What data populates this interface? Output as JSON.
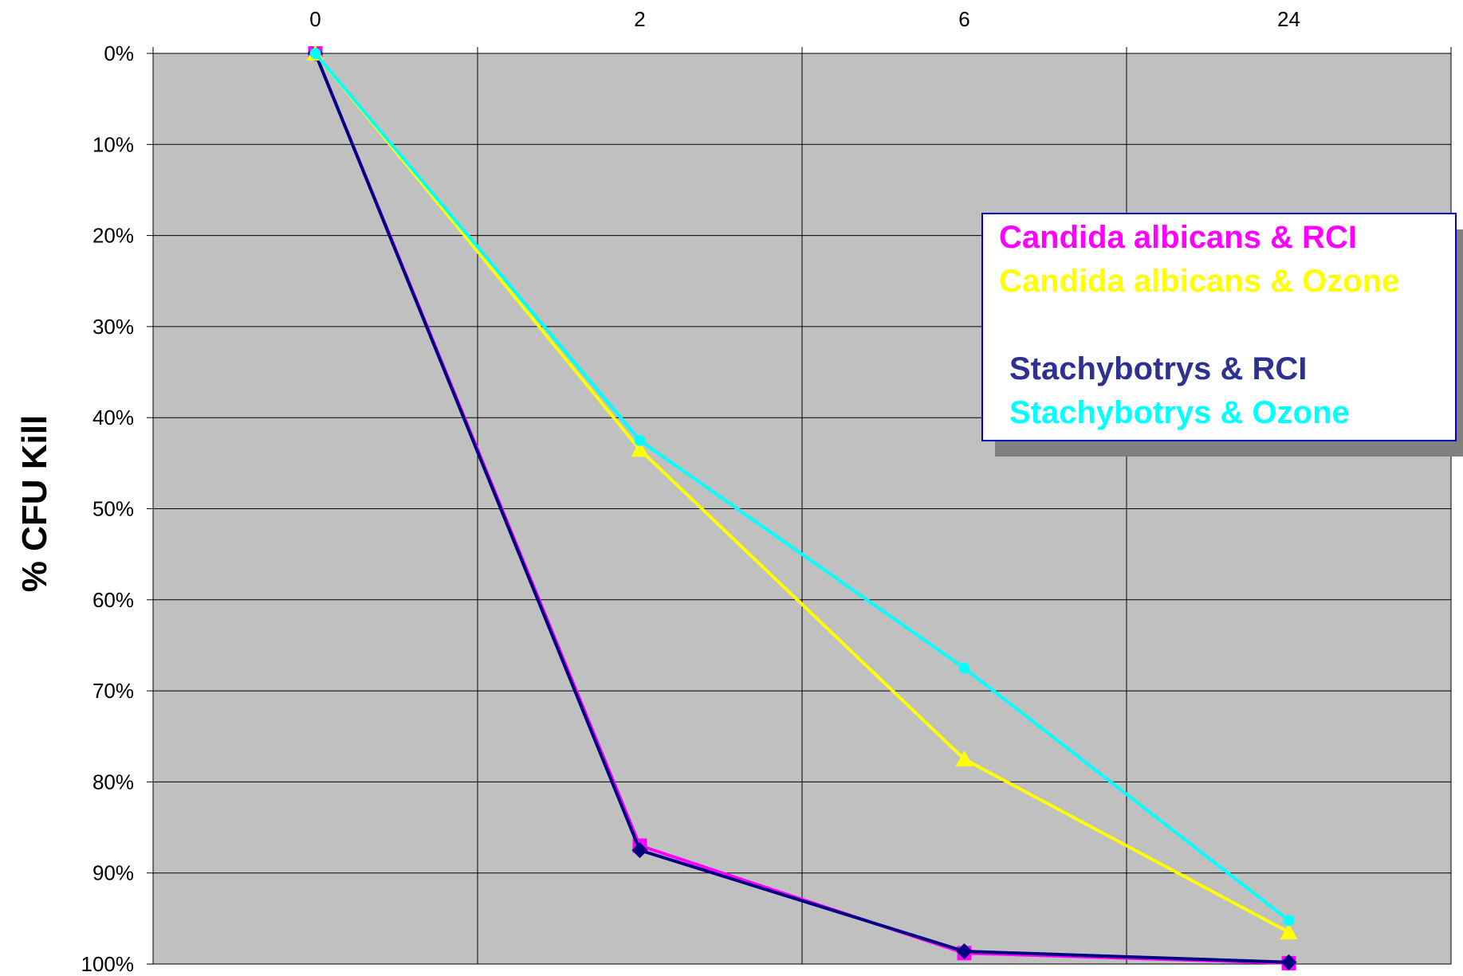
{
  "chart_data": {
    "type": "line",
    "title": "",
    "xlabel": "",
    "ylabel": "%  CFU  Kill",
    "x": [
      "0",
      "2",
      "6",
      "24"
    ],
    "yticks": [
      "0%",
      "10%",
      "20%",
      "30%",
      "40%",
      "50%",
      "60%",
      "70%",
      "80%",
      "90%",
      "100%"
    ],
    "ylim": [
      0,
      100
    ],
    "y_inverted": true,
    "grid": true,
    "plot_background": "#c0c0c0",
    "legend_position": "top-right",
    "series": [
      {
        "name": "Candida albicans & RCI",
        "values": [
          0,
          87,
          98.8,
          99.9
        ],
        "color": "#ff00ff",
        "marker": "square"
      },
      {
        "name": "Candida albicans & Ozone",
        "values": [
          0,
          43.5,
          77.5,
          96.5
        ],
        "color": "#ffff00",
        "marker": "triangle"
      },
      {
        "name": "Stachybotrys & RCI",
        "values": [
          0,
          87.5,
          98.6,
          99.8
        ],
        "color": "#000080",
        "marker": "diamond"
      },
      {
        "name": "Stachybotrys & Ozone",
        "values": [
          0,
          42.5,
          67.5,
          95.2
        ],
        "color": "#00ffff",
        "marker": "circle"
      }
    ],
    "legend_order": [
      0,
      1,
      null,
      2,
      3
    ],
    "legend_colors": [
      "#ff00ff",
      "#ffff00",
      "#2e3192",
      "#00ffff"
    ]
  }
}
